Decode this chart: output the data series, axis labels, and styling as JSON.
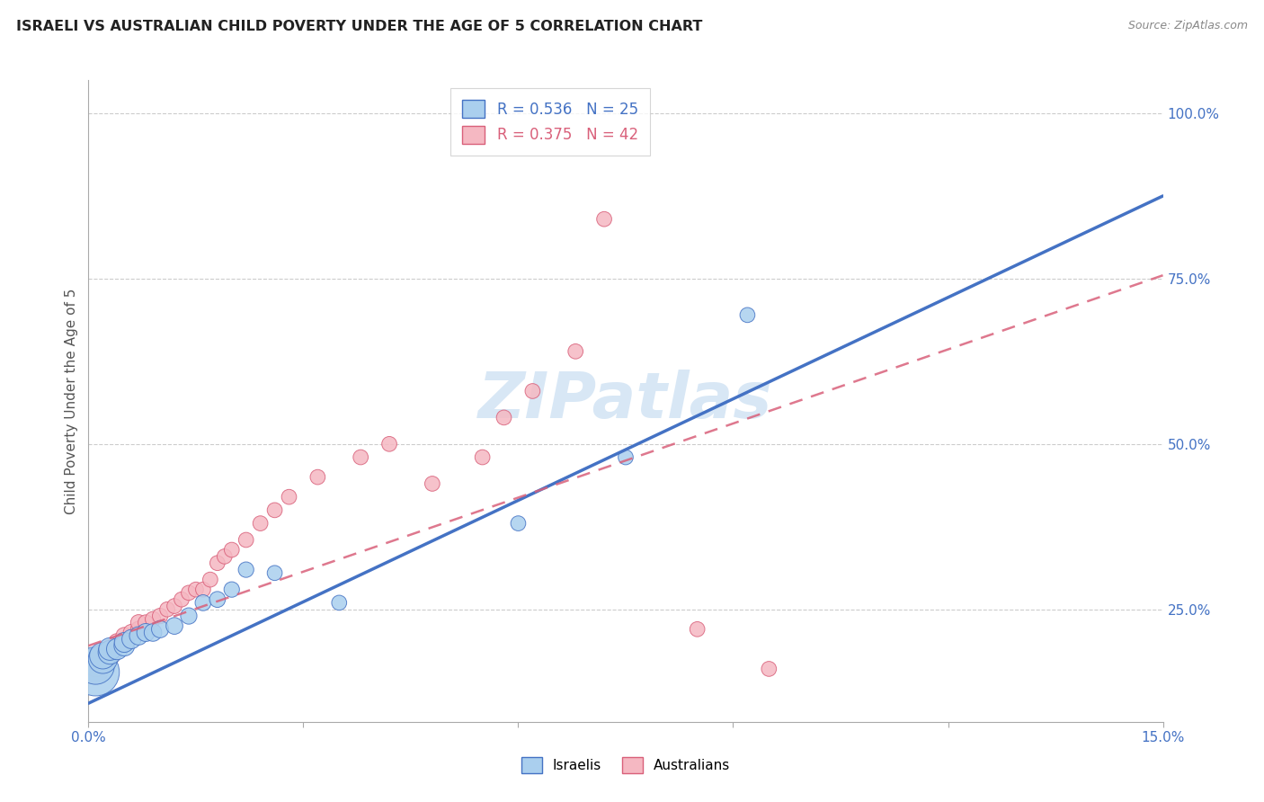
{
  "title": "ISRAELI VS AUSTRALIAN CHILD POVERTY UNDER THE AGE OF 5 CORRELATION CHART",
  "source": "Source: ZipAtlas.com",
  "ylabel": "Child Poverty Under the Age of 5",
  "xlim": [
    0.0,
    0.15
  ],
  "ylim": [
    0.08,
    1.05
  ],
  "yticks": [
    0.25,
    0.5,
    0.75,
    1.0
  ],
  "yticklabels": [
    "25.0%",
    "50.0%",
    "75.0%",
    "100.0%"
  ],
  "watermark": "ZIPatlas",
  "legend_israelis": "Israelis",
  "legend_australians": "Australians",
  "R_israelis": 0.536,
  "N_israelis": 25,
  "R_australians": 0.375,
  "N_australians": 42,
  "color_israelis_fill": "#aacfee",
  "color_australians_fill": "#f5b8c2",
  "color_israelis_line": "#4472c4",
  "color_australians_line": "#d9607a",
  "israelis_x": [
    0.001,
    0.001,
    0.002,
    0.002,
    0.003,
    0.003,
    0.004,
    0.005,
    0.005,
    0.006,
    0.007,
    0.008,
    0.009,
    0.01,
    0.012,
    0.014,
    0.016,
    0.018,
    0.02,
    0.022,
    0.026,
    0.035,
    0.06,
    0.075,
    0.092
  ],
  "israelis_y": [
    0.155,
    0.165,
    0.175,
    0.18,
    0.185,
    0.19,
    0.19,
    0.195,
    0.2,
    0.205,
    0.21,
    0.215,
    0.215,
    0.22,
    0.225,
    0.24,
    0.26,
    0.265,
    0.28,
    0.31,
    0.305,
    0.26,
    0.38,
    0.48,
    0.695
  ],
  "israelis_size": [
    800,
    500,
    300,
    250,
    200,
    180,
    160,
    150,
    140,
    130,
    120,
    115,
    110,
    105,
    100,
    95,
    90,
    90,
    85,
    85,
    80,
    80,
    80,
    80,
    80
  ],
  "australians_x": [
    0.001,
    0.001,
    0.001,
    0.002,
    0.002,
    0.003,
    0.003,
    0.004,
    0.004,
    0.005,
    0.005,
    0.006,
    0.007,
    0.007,
    0.008,
    0.009,
    0.01,
    0.011,
    0.012,
    0.013,
    0.014,
    0.015,
    0.016,
    0.017,
    0.018,
    0.019,
    0.02,
    0.022,
    0.024,
    0.026,
    0.028,
    0.032,
    0.038,
    0.042,
    0.048,
    0.055,
    0.058,
    0.062,
    0.068,
    0.072,
    0.085,
    0.095
  ],
  "australians_y": [
    0.155,
    0.165,
    0.175,
    0.17,
    0.18,
    0.18,
    0.19,
    0.195,
    0.2,
    0.2,
    0.21,
    0.215,
    0.22,
    0.23,
    0.23,
    0.235,
    0.24,
    0.25,
    0.255,
    0.265,
    0.275,
    0.28,
    0.28,
    0.295,
    0.32,
    0.33,
    0.34,
    0.355,
    0.38,
    0.4,
    0.42,
    0.45,
    0.48,
    0.5,
    0.44,
    0.48,
    0.54,
    0.58,
    0.64,
    0.84,
    0.22,
    0.16
  ],
  "australians_size": [
    200,
    180,
    160,
    150,
    140,
    130,
    120,
    115,
    110,
    105,
    100,
    95,
    90,
    90,
    85,
    85,
    85,
    80,
    80,
    80,
    80,
    80,
    80,
    80,
    80,
    80,
    80,
    80,
    80,
    80,
    80,
    80,
    80,
    80,
    80,
    80,
    80,
    80,
    80,
    80,
    80,
    80
  ],
  "isr_line_x0": 0.0,
  "isr_line_y0": 0.108,
  "isr_line_x1": 0.15,
  "isr_line_y1": 0.875,
  "aus_line_x0": 0.0,
  "aus_line_y0": 0.195,
  "aus_line_x1": 0.15,
  "aus_line_y1": 0.755,
  "background_color": "#ffffff",
  "grid_color": "#cccccc"
}
